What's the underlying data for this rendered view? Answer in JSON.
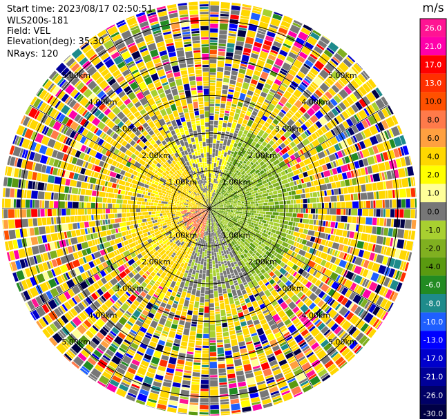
{
  "header": {
    "start_time": "Start time: 2023/08/17 02:50:51",
    "instrument": "WLS200s-181",
    "field": "Field: VEL",
    "elevation": "Elevation(deg): 35.30",
    "nrays": "NRays: 120"
  },
  "colorbar": {
    "unit": "m/s",
    "ticks": [
      "26.0",
      "21.0",
      "17.0",
      "13.0",
      "10.0",
      "8.0",
      "6.0",
      "4.0",
      "2.0",
      "1.0",
      "0.0",
      "-1.0",
      "-2.0",
      "-4.0",
      "-6.0",
      "-8.0",
      "-10.0",
      "-13.0",
      "-17.0",
      "-21.0",
      "-26.0",
      "-30.0"
    ],
    "colors": [
      "#ff1493",
      "#ff00aa",
      "#ff0000",
      "#ff3000",
      "#ff5000",
      "#ff7a4a",
      "#ffa040",
      "#ffd700",
      "#ffff00",
      "#ffff99",
      "#777777",
      "#a8d030",
      "#80b020",
      "#5a9a10",
      "#228b22",
      "#1e8b8b",
      "#1e5fff",
      "#0000ff",
      "#0000cc",
      "#000099",
      "#000066",
      "#000044"
    ]
  },
  "chart_data": {
    "type": "ppi",
    "title": "",
    "range_ring_labels": [
      "1.00km",
      "2.00km",
      "3.00km",
      "4.00km",
      "5.00km"
    ],
    "range_rings_km": [
      1,
      2,
      3,
      4,
      5
    ],
    "max_range_km": 5.5,
    "n_rays": 120,
    "azimuth_grid_deg": [
      0,
      30,
      60,
      90,
      120,
      150,
      180,
      210,
      240,
      270,
      300,
      330
    ],
    "velocity_range_ms": [
      -30,
      26
    ]
  }
}
